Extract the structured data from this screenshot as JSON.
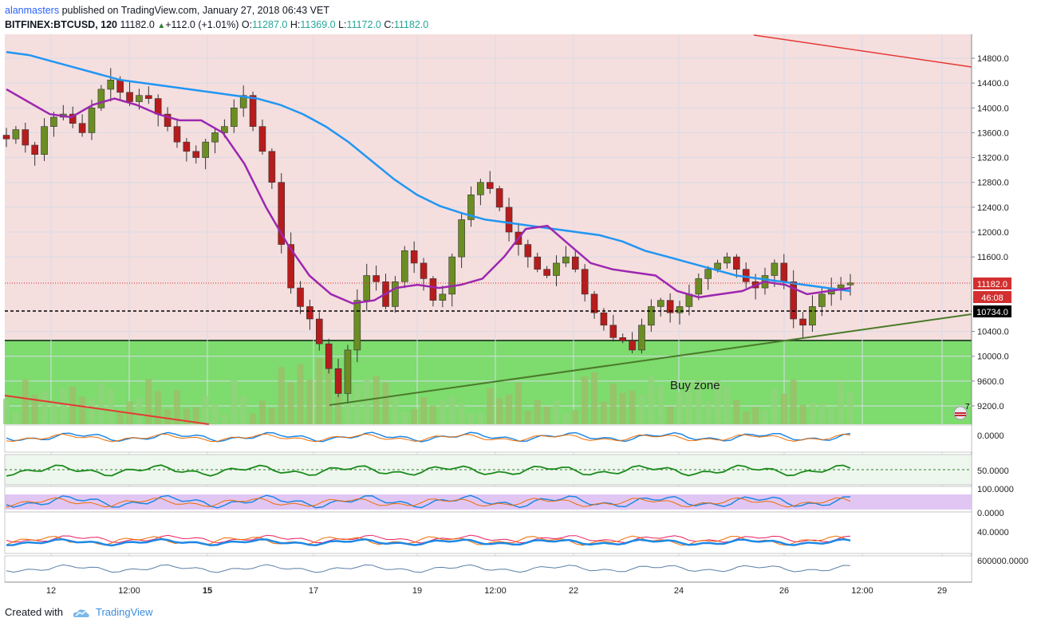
{
  "header": {
    "user": "alanmasters",
    "published_text": "published on TradingView.com, January 27, 2018 06:43 VET",
    "symbol": "BITFINEX:BTCUSD, 120",
    "last": "11182.0",
    "change": "+112.0 (+1.01%)",
    "o_label": "O:",
    "o_value": "11287.0",
    "h_label": "H:",
    "h_value": "11369.0",
    "l_label": "L:",
    "l_value": "11172.0",
    "c_label": "C:",
    "c_value": "11182.0"
  },
  "footer": {
    "created_with": "Created with",
    "brand": "TradingView"
  },
  "colors": {
    "up": "#6b8e23",
    "down": "#b71c1c",
    "ma_slow": "#2196f3",
    "ma_fast": "#9c27b0",
    "buy_zone": "#7fdd71",
    "upper_bg": "#f5dada",
    "trend_up": "#4a7a2a",
    "trend_down": "#e53935"
  },
  "chart_data": {
    "type": "candlestick",
    "symbol": "BITFINEX:BTCUSD",
    "interval": "120",
    "price_axis_ticks": [
      "14800.0",
      "14400.0",
      "14000.0",
      "13600.0",
      "13200.0",
      "12800.0",
      "12400.0",
      "12000.0",
      "11600.0",
      "10400.0",
      "10000.0",
      "9600.0",
      "9200.0"
    ],
    "price_labels": {
      "last": "11182.0",
      "countdown": "46:08",
      "support": "10734.0"
    },
    "time_axis_ticks": [
      "12",
      "12:00",
      "15",
      "17",
      "19",
      "12:00",
      "22",
      "24",
      "26",
      "12:00",
      "29"
    ],
    "ylim": [
      9000,
      15000
    ],
    "buy_zone": {
      "label": "Buy zone",
      "from": 9000,
      "to": 10250
    },
    "support_line": 10734,
    "close_series": [
      13500,
      13650,
      13400,
      13250,
      13700,
      13850,
      13900,
      13750,
      13600,
      14000,
      14300,
      14450,
      14250,
      14100,
      14200,
      14150,
      13900,
      13700,
      13450,
      13300,
      13200,
      13450,
      13600,
      13700,
      14000,
      14200,
      13700,
      13300,
      12800,
      11800,
      11100,
      10800,
      10600,
      10200,
      9800,
      9400,
      10100,
      10900,
      11300,
      11200,
      10800,
      11200,
      11700,
      11500,
      11250,
      10900,
      11000,
      11600,
      12200,
      12600,
      12800,
      12700,
      12400,
      12000,
      11800,
      11600,
      11400,
      11300,
      11500,
      11600,
      11400,
      11000,
      10700,
      10500,
      10300,
      10250,
      10100,
      10500,
      10800,
      10900,
      10700,
      10800,
      11000,
      11250,
      11400,
      11500,
      11600,
      11400,
      11200,
      11100,
      11300,
      11500,
      11200,
      10600,
      10500,
      10800,
      11000,
      11100,
      11150,
      11182
    ],
    "ma_slow_series": [
      14900,
      14850,
      14750,
      14650,
      14550,
      14450,
      14400,
      14350,
      14300,
      14250,
      14200,
      14150,
      14050,
      13900,
      13700,
      13450,
      13150,
      12850,
      12600,
      12420,
      12300,
      12200,
      12150,
      12100,
      12050,
      12000,
      11950,
      11850,
      11700,
      11600,
      11500,
      11400,
      11300,
      11250,
      11200,
      11150,
      11100,
      11050
    ],
    "ma_fast_series": [
      14300,
      14100,
      13900,
      13850,
      14050,
      14150,
      14050,
      13900,
      13800,
      13800,
      13600,
      13100,
      12400,
      11800,
      11300,
      11000,
      10850,
      10900,
      11100,
      11150,
      11100,
      11150,
      11250,
      11600,
      12050,
      12100,
      11800,
      11500,
      11400,
      11350,
      11300,
      11050,
      10950,
      11000,
      11050,
      11200,
      11150,
      11000,
      11050,
      11100
    ],
    "indicator_ticks": [
      "0.0000",
      "50.0000",
      "100.0000",
      "0.0000",
      "40.0000",
      "600000.0000"
    ],
    "volume_badge": "7"
  }
}
